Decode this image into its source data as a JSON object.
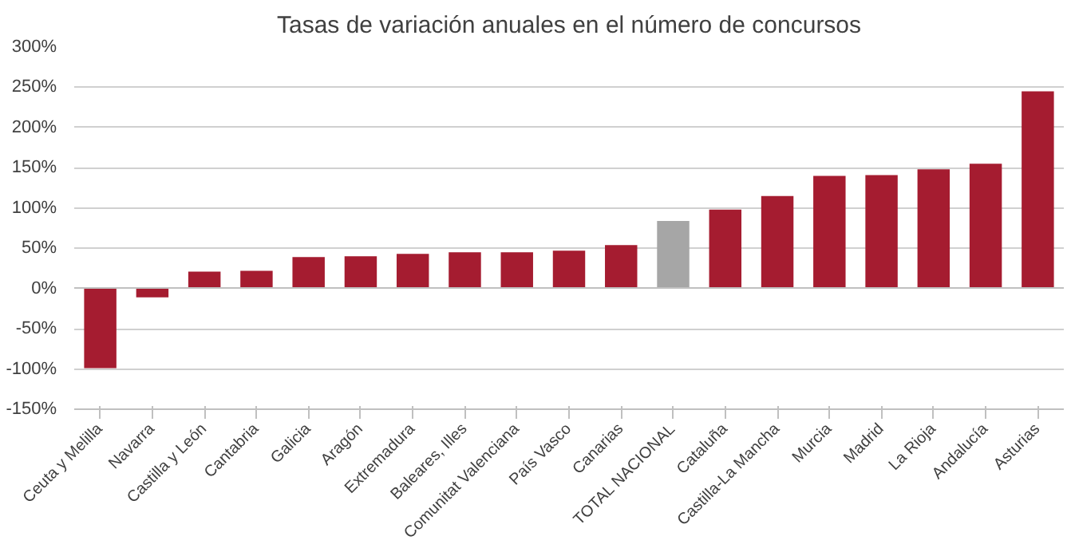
{
  "chart_data": {
    "type": "bar",
    "title": "Tasas de variación anuales en el número de concursos",
    "categories": [
      "Ceuta y Melilla",
      "Navarra",
      "Castilla y León",
      "Cantabria",
      "Galicia",
      "Aragón",
      "Extremadura",
      "Baleares, Illes",
      "Comunitat Valenciana",
      "País Vasco",
      "Canarias",
      "TOTAL NACIONAL",
      "Cataluña",
      "Castilla-La Mancha",
      "Murcia",
      "Madrid",
      "La Rioja",
      "Andalucía",
      "Asturias"
    ],
    "values": [
      -99,
      -11,
      21,
      22,
      39,
      40,
      43,
      45,
      45,
      47,
      54,
      84,
      98,
      115,
      140,
      141,
      148,
      155,
      245
    ],
    "colors": [
      "#a51c30",
      "#a51c30",
      "#a51c30",
      "#a51c30",
      "#a51c30",
      "#a51c30",
      "#a51c30",
      "#a51c30",
      "#a51c30",
      "#a51c30",
      "#a51c30",
      "#a6a6a6",
      "#a51c30",
      "#a51c30",
      "#a51c30",
      "#a51c30",
      "#a51c30",
      "#a51c30",
      "#a51c30"
    ],
    "ylim": [
      -150,
      300
    ],
    "yticks": [
      {
        "value": -150,
        "label": "-150%"
      },
      {
        "value": -100,
        "label": "-100%"
      },
      {
        "value": -50,
        "label": "-50%"
      },
      {
        "value": 0,
        "label": "0%"
      },
      {
        "value": 50,
        "label": "50%"
      },
      {
        "value": 100,
        "label": "100%"
      },
      {
        "value": 150,
        "label": "150%"
      },
      {
        "value": 200,
        "label": "200%"
      },
      {
        "value": 250,
        "label": "250%"
      },
      {
        "value": 300,
        "label": "300%"
      }
    ],
    "grid": "y"
  }
}
